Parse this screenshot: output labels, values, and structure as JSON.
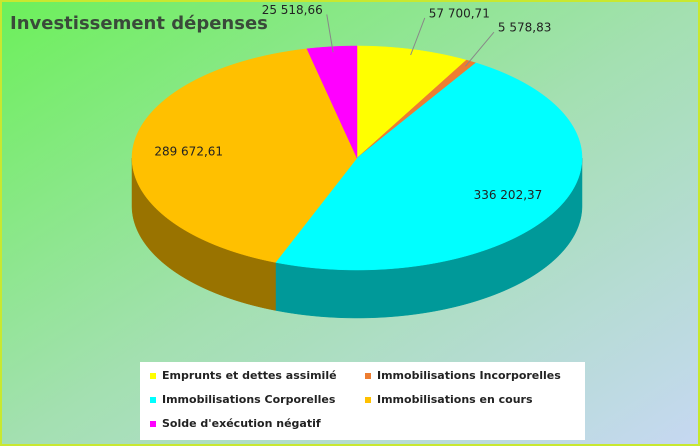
{
  "chart_data": {
    "type": "pie3d",
    "title": "Investissement dépenses",
    "categories": [
      "Emprunts et dettes assimilé",
      "Immobilisations Incorporelles",
      "Immobilisations Corporelles",
      "Immobilisations en cours",
      "Solde d'exécution négatif"
    ],
    "values": [
      57700.71,
      5578.83,
      336202.37,
      289672.61,
      25518.66
    ],
    "value_labels": [
      "57 700,71",
      "5 578,83",
      "336 202,37",
      "289 672,61",
      "25 518,66"
    ],
    "colors": [
      "#ffff00",
      "#ed7d31",
      "#00ffff",
      "#ffc000",
      "#ff00ff"
    ],
    "legend": "bottom"
  }
}
